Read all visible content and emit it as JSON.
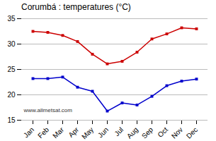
{
  "chart_data": {
    "type": "line",
    "title": "Corumbá : temperatures (°C)",
    "categories": [
      "Jan",
      "Feb",
      "Mar",
      "Apr",
      "May",
      "Jun",
      "Jul",
      "Aug",
      "Sep",
      "Oct",
      "Nov",
      "Dec"
    ],
    "series": [
      {
        "color": "#cc0000",
        "marker": "square",
        "values": [
          32.5,
          32.3,
          31.7,
          30.5,
          28.0,
          26.1,
          26.6,
          28.4,
          31.0,
          32.0,
          33.2,
          33.0
        ]
      },
      {
        "color": "#0000cc",
        "marker": "square",
        "values": [
          23.2,
          23.2,
          23.5,
          21.5,
          20.7,
          16.8,
          18.4,
          18.0,
          19.7,
          21.8,
          22.7,
          23.1
        ]
      }
    ],
    "ylim": [
      15,
      35
    ],
    "yticks": [
      15,
      20,
      25,
      30,
      35
    ],
    "grid": true,
    "annotations": [
      "www.allmetsat.com"
    ]
  }
}
